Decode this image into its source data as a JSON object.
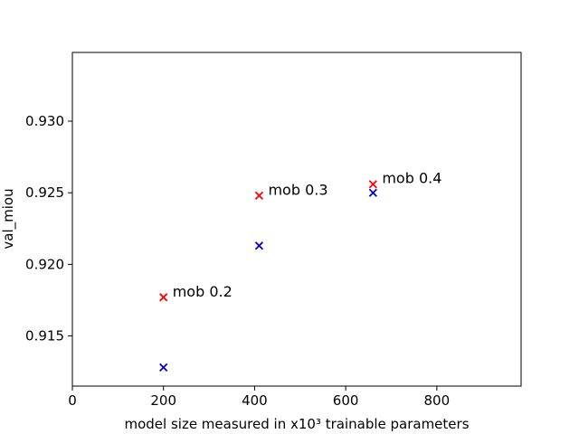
{
  "chart_data": {
    "type": "scatter",
    "title": "",
    "xlabel": "model size measured in x10³ trainable parameters",
    "ylabel": "val_miou",
    "xlim": [
      0,
      985
    ],
    "ylim": [
      0.9115,
      0.9348
    ],
    "grid": false,
    "legend": "none",
    "x_ticks": [
      {
        "value": 0,
        "label": "0"
      },
      {
        "value": 200,
        "label": "200"
      },
      {
        "value": 400,
        "label": "400"
      },
      {
        "value": 600,
        "label": "600"
      },
      {
        "value": 800,
        "label": "800"
      }
    ],
    "y_ticks": [
      {
        "value": 0.915,
        "label": "0.915"
      },
      {
        "value": 0.92,
        "label": "0.920"
      },
      {
        "value": 0.925,
        "label": "0.925"
      },
      {
        "value": 0.93,
        "label": "0.930"
      }
    ],
    "series": [
      {
        "color": "#ff0000",
        "marker": "x",
        "points": [
          {
            "x": 200,
            "y": 0.9177,
            "label": "mob 0.2"
          },
          {
            "x": 410,
            "y": 0.9248,
            "label": "mob 0.3"
          },
          {
            "x": 660,
            "y": 0.9256,
            "label": "mob 0.4"
          }
        ]
      },
      {
        "color": "#0000cc",
        "marker": "x",
        "points": [
          {
            "x": 200,
            "y": 0.9128
          },
          {
            "x": 410,
            "y": 0.9213
          },
          {
            "x": 660,
            "y": 0.925
          }
        ]
      }
    ]
  }
}
